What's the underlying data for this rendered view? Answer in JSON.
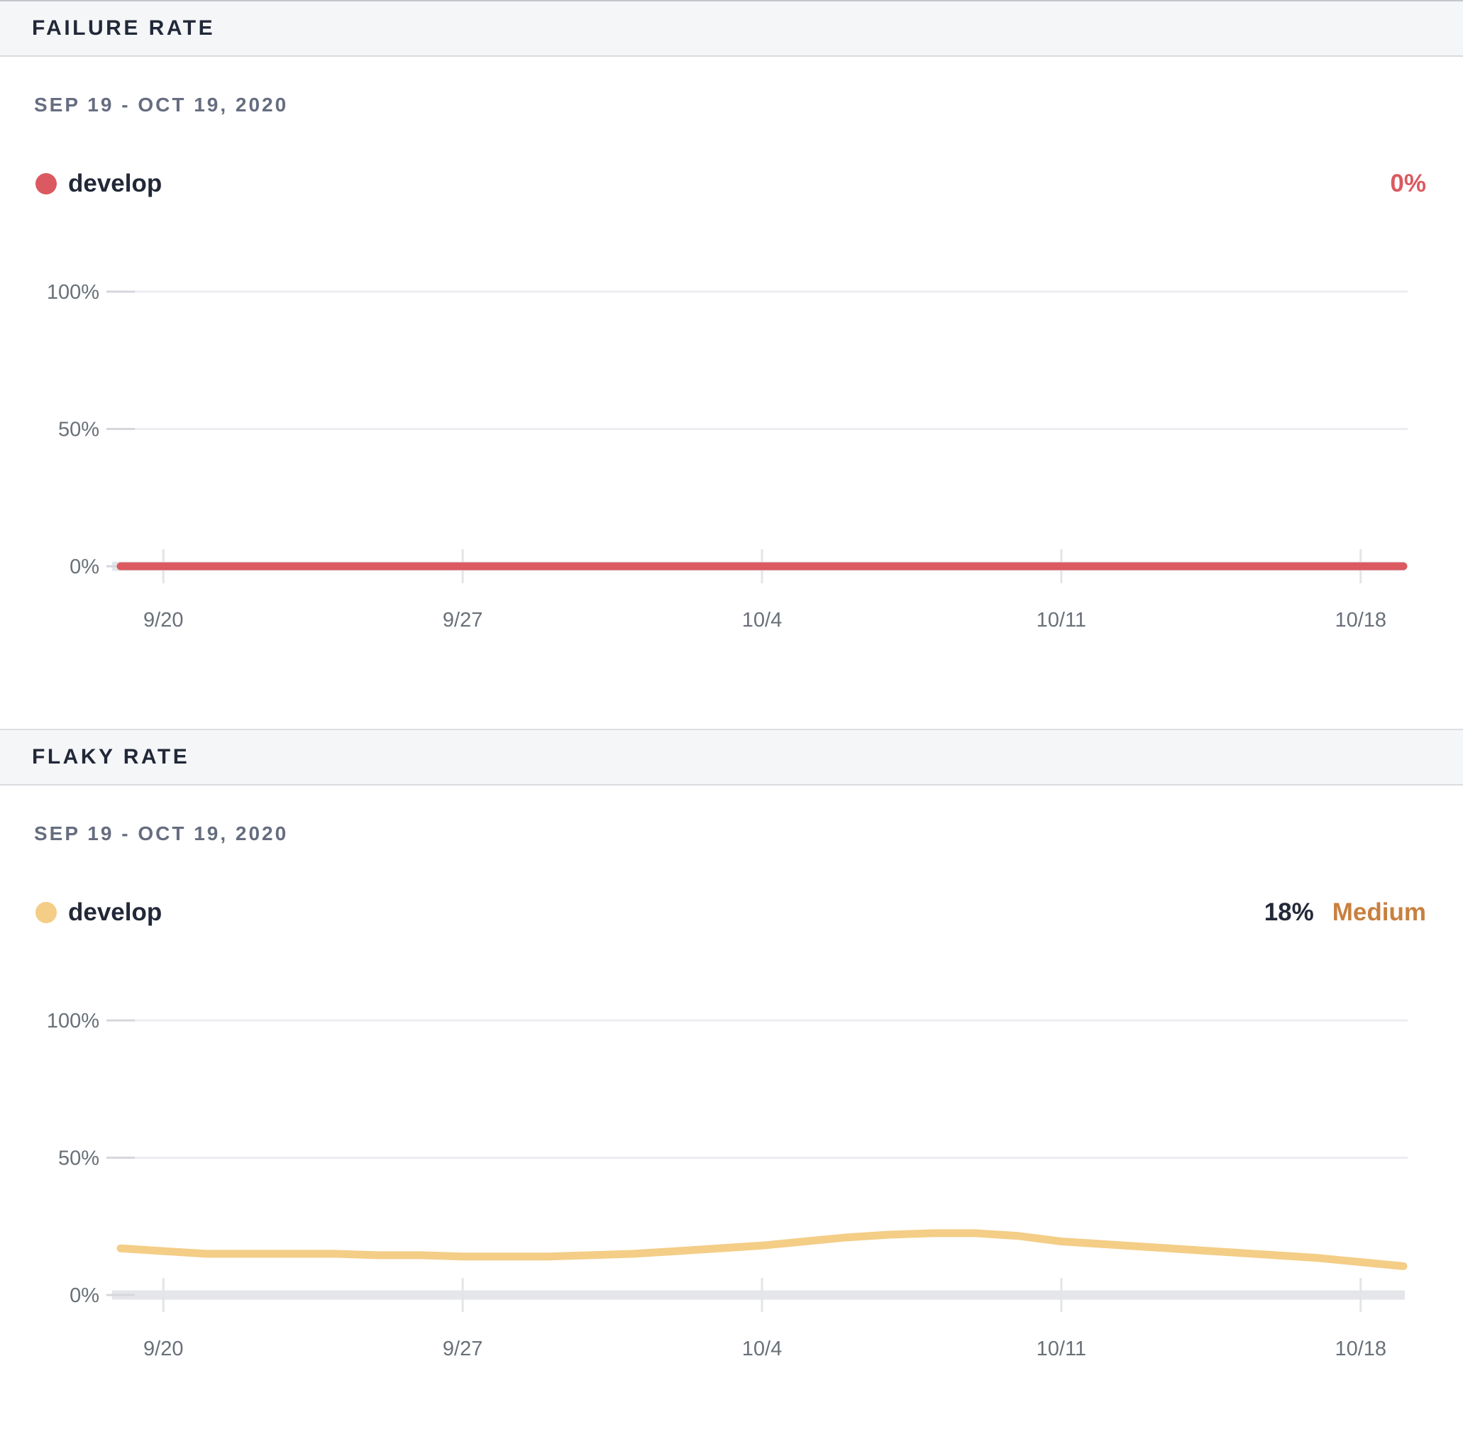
{
  "panels": [
    {
      "header": "FAILURE RATE",
      "date_range": "SEP 19 - OCT 19, 2020",
      "legend": {
        "branch": "develop",
        "dot_color": "#db5960"
      },
      "summary": {
        "value": "0%",
        "value_color": "#db5960",
        "severity": "",
        "severity_color": ""
      },
      "chart_data": {
        "type": "line",
        "title": "Failure Rate",
        "x_range": [
          "Sep 19, 2020",
          "Oct 19, 2020"
        ],
        "x_tick_labels": [
          "9/20",
          "9/27",
          "10/4",
          "10/11",
          "10/18"
        ],
        "x_tick_days": [
          1,
          8,
          15,
          22,
          29
        ],
        "y_tick_labels": [
          "0%",
          "50%",
          "100%"
        ],
        "y_tick_values": [
          0,
          50,
          100
        ],
        "ylim": [
          0,
          100
        ],
        "grid": true,
        "legend_position": "top-left",
        "series": [
          {
            "name": "develop",
            "color": "#db5960",
            "values": [
              0,
              0,
              0,
              0,
              0,
              0,
              0,
              0,
              0,
              0,
              0,
              0,
              0,
              0,
              0,
              0,
              0,
              0,
              0,
              0,
              0,
              0,
              0,
              0,
              0,
              0,
              0,
              0,
              0,
              0,
              0
            ]
          }
        ]
      }
    },
    {
      "header": "FLAKY RATE",
      "date_range": "SEP 19 - OCT 19, 2020",
      "legend": {
        "branch": "develop",
        "dot_color": "#f4cd86"
      },
      "summary": {
        "value": "18%",
        "value_color": "#232939",
        "severity": "Medium",
        "severity_color": "#c8803f"
      },
      "chart_data": {
        "type": "line",
        "title": "Flaky Rate",
        "x_range": [
          "Sep 19, 2020",
          "Oct 19, 2020"
        ],
        "x_tick_labels": [
          "9/20",
          "9/27",
          "10/4",
          "10/11",
          "10/18"
        ],
        "x_tick_days": [
          1,
          8,
          15,
          22,
          29
        ],
        "y_tick_labels": [
          "0%",
          "50%",
          "100%"
        ],
        "y_tick_values": [
          0,
          50,
          100
        ],
        "ylim": [
          0,
          100
        ],
        "grid": true,
        "legend_position": "top-left",
        "series": [
          {
            "name": "develop",
            "color": "#f4cd86",
            "values": [
              17,
              16,
              15,
              15,
              15,
              15,
              14.5,
              14.5,
              14,
              14,
              14,
              14.5,
              15,
              16,
              17,
              18,
              19.5,
              21,
              22,
              22.5,
              22.5,
              21.5,
              19.5,
              18.5,
              17.5,
              16.5,
              15.5,
              14.5,
              13.5,
              12,
              10.5
            ]
          }
        ]
      }
    }
  ]
}
